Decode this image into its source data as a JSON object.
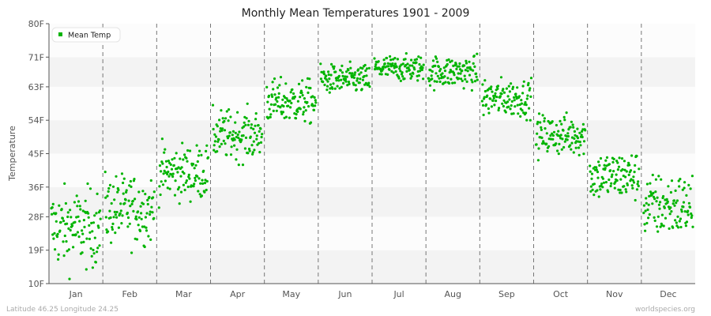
{
  "chart_data": {
    "type": "scatter",
    "title": "Monthly Mean Temperatures 1901 - 2009",
    "xlabel": "",
    "ylabel": "Temperature",
    "ylim": [
      10,
      80
    ],
    "yticks": [
      "10F",
      "19F",
      "28F",
      "36F",
      "45F",
      "54F",
      "63F",
      "71F",
      "80F"
    ],
    "ytick_values": [
      10,
      19,
      28,
      36,
      45,
      54,
      63,
      71,
      80
    ],
    "categories": [
      "Jan",
      "Feb",
      "Mar",
      "Apr",
      "May",
      "Jun",
      "Jul",
      "Aug",
      "Sep",
      "Oct",
      "Nov",
      "Dec"
    ],
    "grid": true,
    "legend": {
      "placement": "top-left",
      "entries": [
        "Mean Temp"
      ]
    },
    "series": [
      {
        "name": "Mean Temp",
        "color": "#00b400",
        "years": 109,
        "note": "one point per year per month; summary per month",
        "monthly_mean": [
          25,
          30,
          40,
          50,
          59,
          65,
          68,
          67,
          60,
          50,
          39,
          31
        ],
        "monthly_min": [
          11,
          17,
          30,
          42,
          51,
          60,
          63,
          61,
          54,
          43,
          30,
          19
        ],
        "monthly_max": [
          38,
          41,
          49,
          59,
          66,
          70,
          72,
          72,
          67,
          57,
          47,
          41
        ]
      }
    ]
  },
  "footer": {
    "left": "Latitude 46.25 Longitude 24.25",
    "right": "worldspecies.org"
  }
}
